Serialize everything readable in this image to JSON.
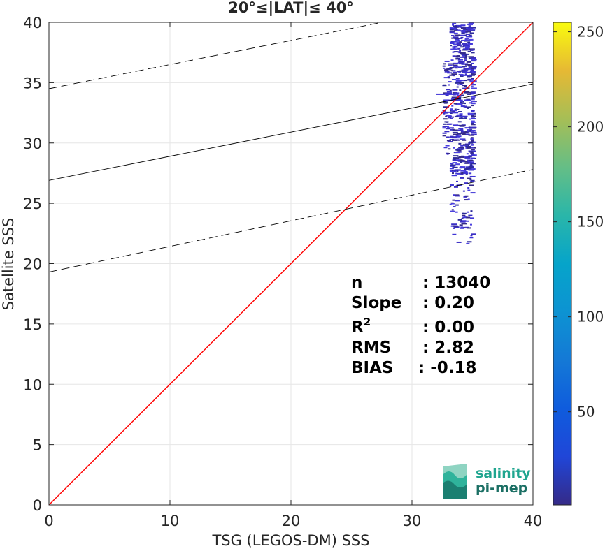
{
  "chart_data": {
    "type": "scatter",
    "title": "20°≤|LAT|≤ 40°",
    "xlabel": "TSG (LEGOS-DM) SSS",
    "ylabel": "Satellite SSS",
    "xlim": [
      0,
      40
    ],
    "ylim": [
      0,
      40
    ],
    "xticks": [
      "0",
      "10",
      "20",
      "30",
      "40"
    ],
    "yticks": [
      "0",
      "5",
      "10",
      "15",
      "20",
      "25",
      "30",
      "35",
      "40"
    ],
    "grid": true,
    "colorbar": {
      "range": [
        1,
        255
      ],
      "ticks": [
        "50",
        "100",
        "150",
        "200",
        "250"
      ],
      "colormap": "parula"
    },
    "lines": [
      {
        "name": "one-to-one",
        "style": "solid",
        "color": "#ff0000",
        "points": [
          [
            0,
            0
          ],
          [
            40,
            40
          ]
        ]
      },
      {
        "name": "regression fit",
        "style": "solid",
        "color": "#000000",
        "points": [
          [
            0,
            26.9
          ],
          [
            40,
            34.9
          ]
        ]
      },
      {
        "name": "upper bound",
        "style": "dashed",
        "color": "#000000",
        "points": [
          [
            0,
            34.5
          ],
          [
            40,
            42.5
          ]
        ]
      },
      {
        "name": "lower bound",
        "style": "dashed",
        "color": "#000000",
        "points": [
          [
            0,
            19.3
          ],
          [
            40,
            27.8
          ]
        ]
      }
    ],
    "density_cloud": {
      "x_range": [
        32.0,
        34.9
      ],
      "y_range": [
        21.6,
        40.0
      ],
      "x_center": 34.0,
      "y_center": 33.0,
      "colormap_value": 5
    },
    "stats": [
      {
        "label": "n",
        "value": ": 13040"
      },
      {
        "label": "Slope",
        "value": ": 0.20"
      },
      {
        "label": "R",
        "sup": "2",
        "value": ": 0.00"
      },
      {
        "label": "RMS",
        "value": ": 2.82"
      },
      {
        "label": "BIAS",
        "value": ": -0.18"
      }
    ]
  },
  "logo": {
    "line1": "salinity",
    "line2": "pi-mep",
    "color1": "#1fa58f",
    "color2": "#1b6f64"
  }
}
